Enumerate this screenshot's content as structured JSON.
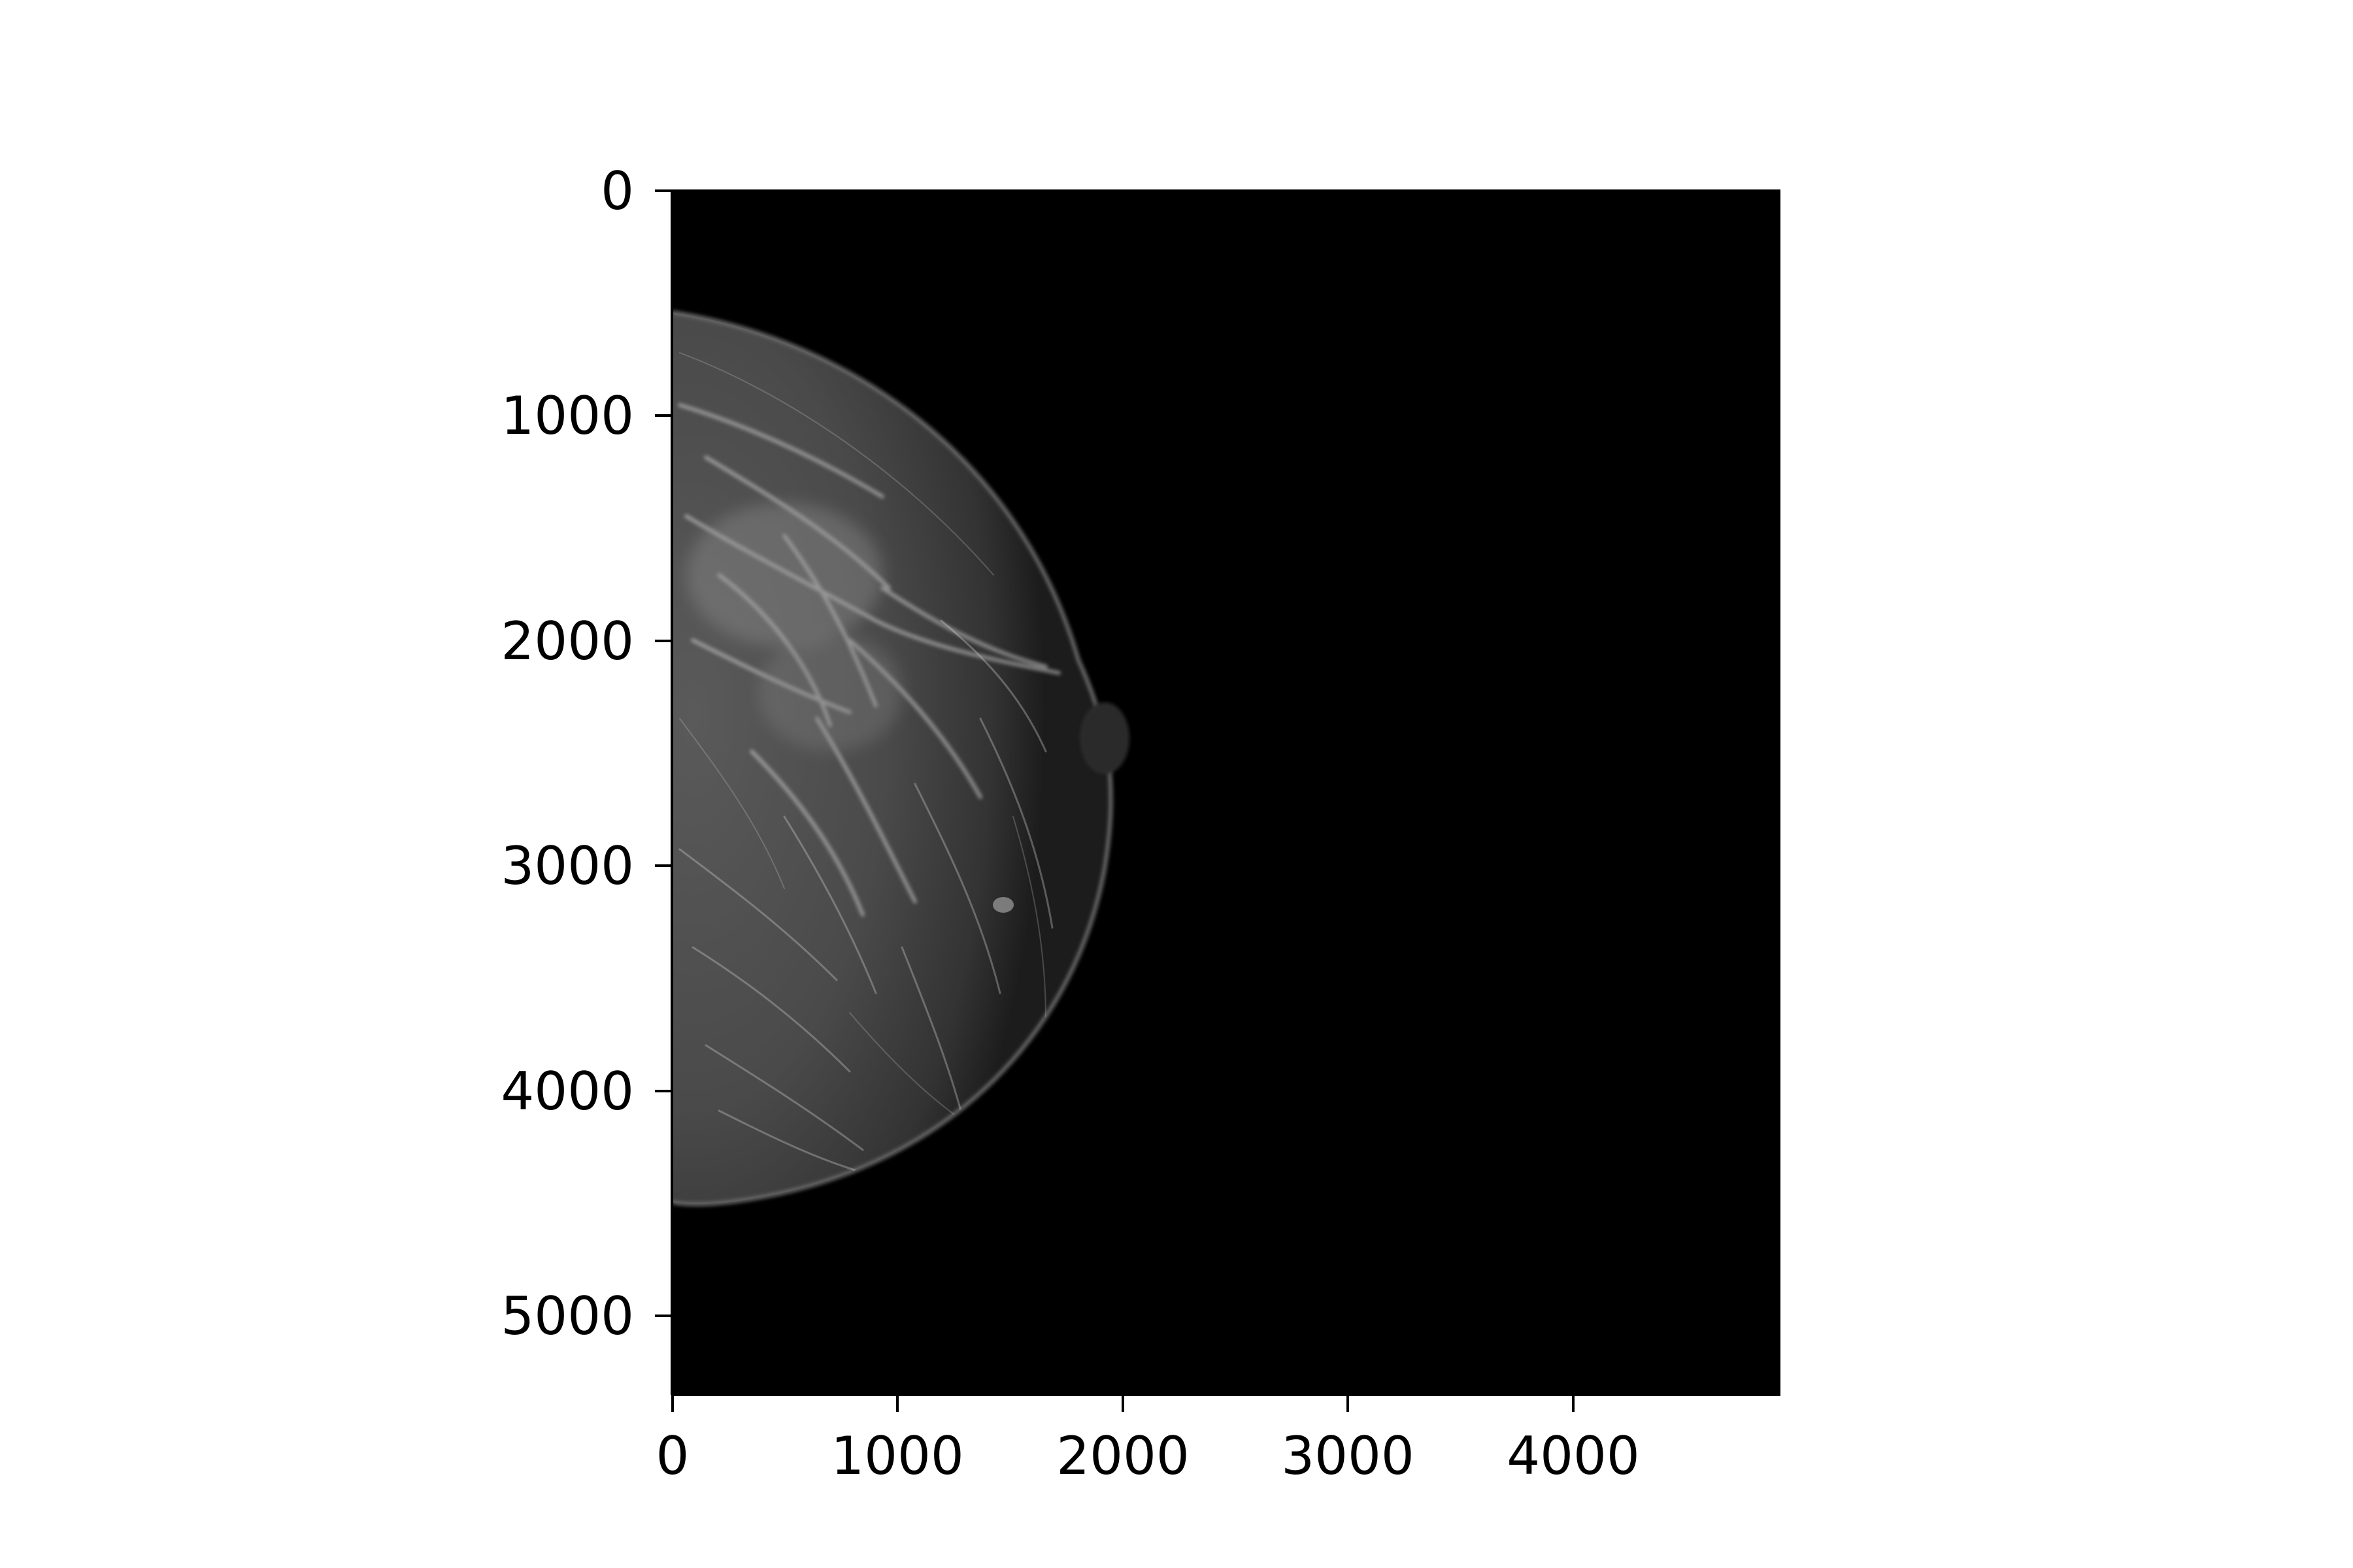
{
  "image_axes": {
    "x_ticks": [
      "0",
      "1000",
      "2000",
      "3000",
      "4000"
    ],
    "y_ticks": [
      "0",
      "1000",
      "2000",
      "3000",
      "4000",
      "5000"
    ],
    "xlim": [
      0,
      4915
    ],
    "ylim": [
      5355,
      0
    ]
  },
  "colors": {
    "image_background": "#000000",
    "figure_background": "#ffffff",
    "tissue": "#4a4a4a",
    "fibers": "#d8d8d8"
  }
}
